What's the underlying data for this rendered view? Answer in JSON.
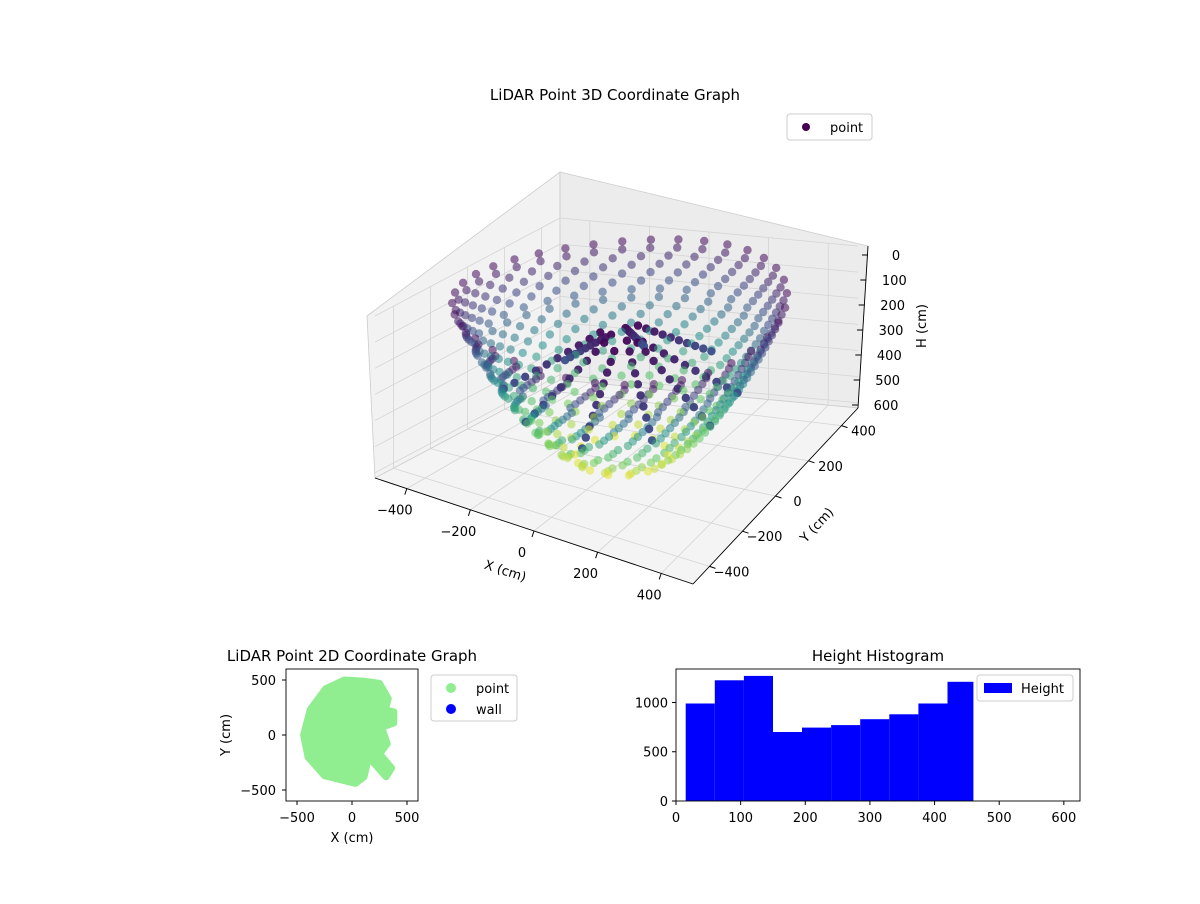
{
  "chart_data": [
    {
      "type": "scatter",
      "projection": "3d",
      "title": "LiDAR Point 3D Coordinate Graph",
      "xlabel": "X (cm)",
      "ylabel": "Y (cm)",
      "zlabel": "H (cm)",
      "xlim": [
        -500,
        500
      ],
      "ylim": [
        -500,
        500
      ],
      "zlim": [
        0,
        620
      ],
      "z_inverted": true,
      "x_ticks": [
        "−400",
        "−200",
        "0",
        "200",
        "400"
      ],
      "y_ticks": [
        "−400",
        "−200",
        "0",
        "200",
        "400"
      ],
      "z_ticks": [
        "0",
        "100",
        "200",
        "300",
        "400",
        "500",
        "600"
      ],
      "colormap": "viridis",
      "legend": {
        "placement": "upper-right",
        "entries": [
          {
            "label": "point",
            "color": "#440154"
          }
        ]
      },
      "grid": true,
      "shape": "bowl of concentric rings, radius ~480 cm at H≈0 shrinking with depth to H≈620, plus a radial cluster of dark points near H 100–400"
    },
    {
      "type": "scatter",
      "title": "LiDAR Point 2D Coordinate Graph",
      "xlabel": "X (cm)",
      "ylabel": "Y (cm)",
      "xlim": [
        -600,
        600
      ],
      "ylim": [
        -600,
        600
      ],
      "x_ticks": [
        "−500",
        "0",
        "500"
      ],
      "y_ticks": [
        "−500",
        "0",
        "500"
      ],
      "legend": {
        "placement": "outside-right",
        "entries": [
          {
            "label": "point",
            "color": "#90ee90"
          },
          {
            "label": "wall",
            "color": "#0000ff"
          }
        ]
      },
      "region_outline": [
        [
          -70,
          500
        ],
        [
          100,
          490
        ],
        [
          250,
          470
        ],
        [
          330,
          330
        ],
        [
          300,
          230
        ],
        [
          380,
          210
        ],
        [
          380,
          110
        ],
        [
          270,
          70
        ],
        [
          320,
          -80
        ],
        [
          250,
          -170
        ],
        [
          360,
          -300
        ],
        [
          310,
          -380
        ],
        [
          150,
          -200
        ],
        [
          110,
          -380
        ],
        [
          30,
          -440
        ],
        [
          -250,
          -370
        ],
        [
          -400,
          -200
        ],
        [
          -440,
          0
        ],
        [
          -380,
          230
        ],
        [
          -240,
          420
        ]
      ]
    },
    {
      "type": "bar",
      "subtype": "histogram",
      "title": "Height Histogram",
      "xlim": [
        0,
        625
      ],
      "ylim": [
        0,
        1340
      ],
      "x_ticks": [
        "0",
        "100",
        "200",
        "300",
        "400",
        "500",
        "600"
      ],
      "y_ticks": [
        "0",
        "500",
        "1000"
      ],
      "bin_edges": [
        15,
        60,
        105,
        150,
        195,
        240,
        285,
        330,
        375,
        420,
        460
      ],
      "values": [
        990,
        1225,
        1270,
        700,
        745,
        770,
        830,
        880,
        990,
        1210
      ],
      "color": "#0000ff",
      "legend": {
        "placement": "upper-right",
        "entries": [
          {
            "label": "Height",
            "color": "#0000ff"
          }
        ]
      }
    }
  ]
}
